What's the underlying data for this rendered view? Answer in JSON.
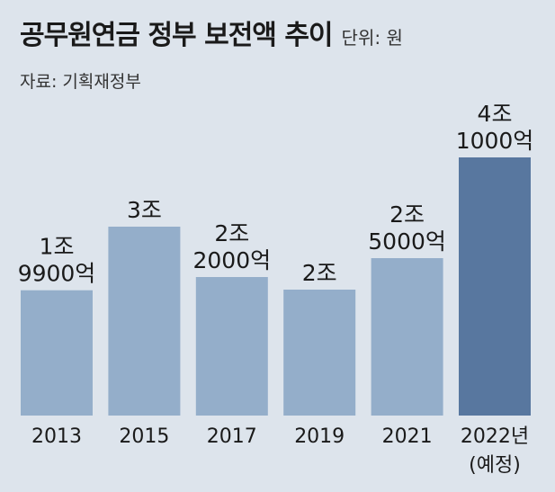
{
  "chart_data": {
    "type": "bar",
    "title": "공무원연금 정부 보전액 추이",
    "unit": "단위: 원",
    "source": "자료: 기획재정부",
    "categories": [
      "2013",
      "2015",
      "2017",
      "2019",
      "2021",
      "2022년\n(예정)"
    ],
    "values": [
      1.99,
      3.0,
      2.2,
      2.0,
      2.5,
      4.1
    ],
    "value_labels": [
      "1조\n9900억",
      "3조",
      "2조\n2000억",
      "2조",
      "2조\n5000억",
      "4조\n1000억"
    ],
    "highlight_index": 5,
    "ylim": [
      0,
      4.1
    ],
    "grid": false,
    "colors": {
      "bar": "#94aeca",
      "highlight": "#58779f",
      "background": "#dde4ec"
    }
  }
}
